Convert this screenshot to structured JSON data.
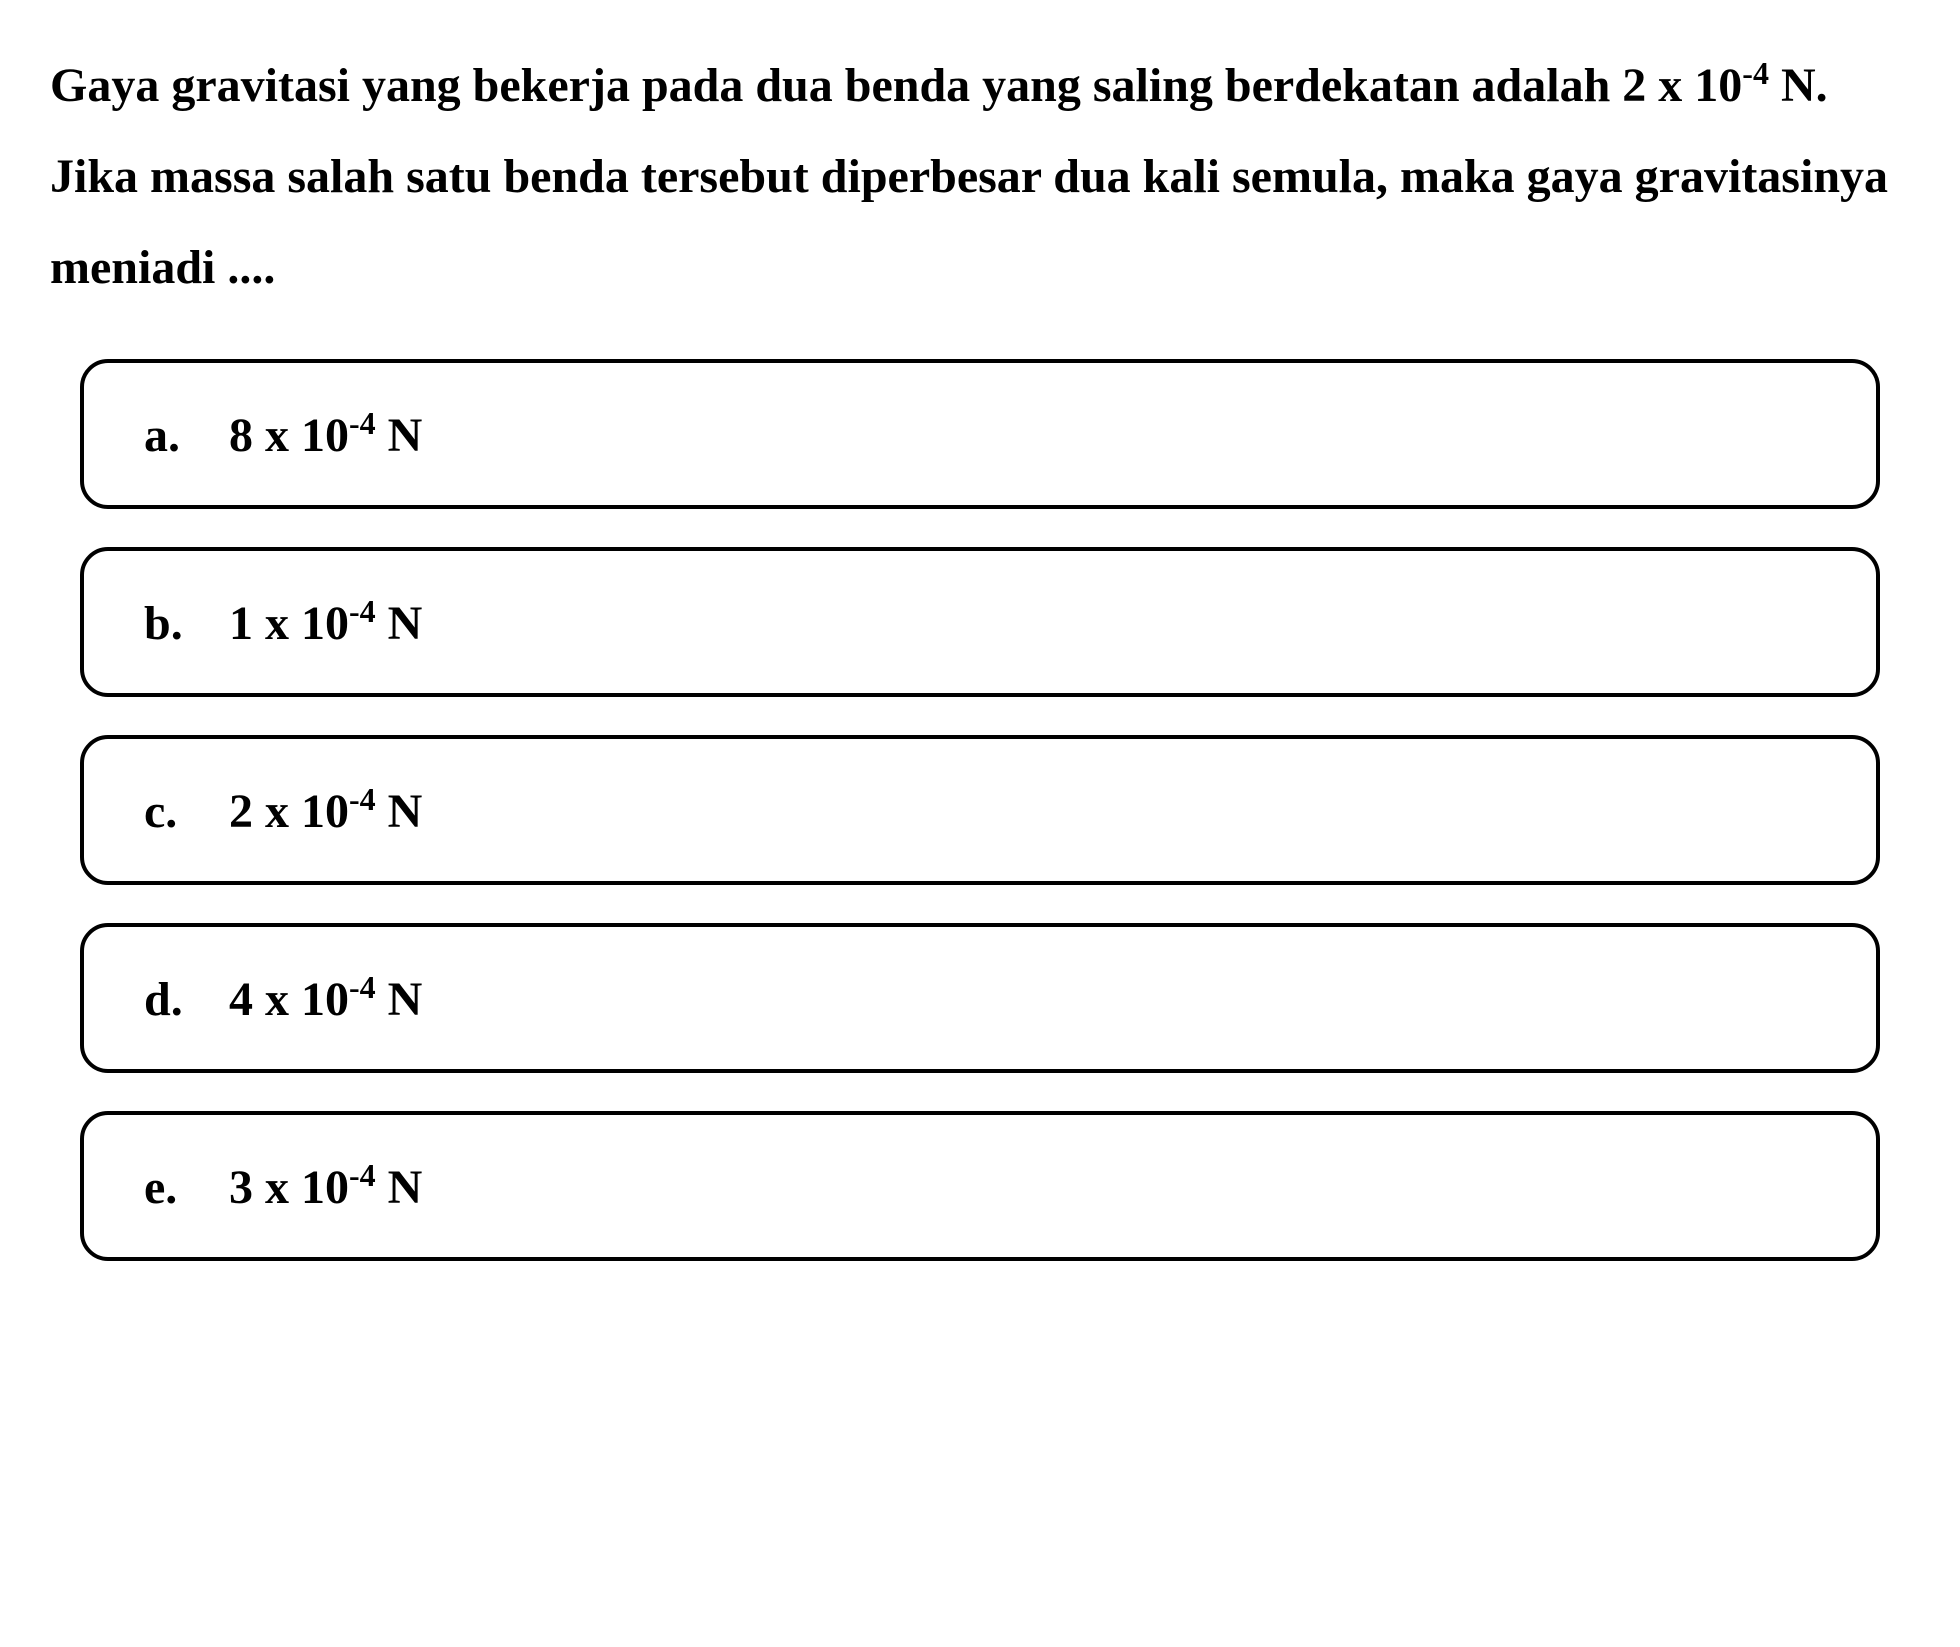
{
  "question": {
    "text_html": "Gaya gravitasi yang bekerja pada dua benda yang saling berdekatan adalah 2 x 10<sup>-4</sup> N. Jika massa salah satu benda tersebut diperbesar dua kali semula, maka gaya gravitasinya meniadi ...."
  },
  "options": [
    {
      "letter": "a.",
      "value_html": "8 x 10<sup>-4</sup> N"
    },
    {
      "letter": "b.",
      "value_html": "1 x 10<sup>-4</sup> N"
    },
    {
      "letter": "c.",
      "value_html": "2 x 10<sup>-4</sup> N"
    },
    {
      "letter": "d.",
      "value_html": "4 x 10<sup>-4</sup> N"
    },
    {
      "letter": "e.",
      "value_html": "3 x 10<sup>-4</sup> N"
    }
  ],
  "styling": {
    "background_color": "#ffffff",
    "text_color": "#000000",
    "border_color": "#000000",
    "border_width": 4,
    "border_radius": 28,
    "question_fontsize": 48,
    "option_fontsize": 48,
    "superscript_fontsize": 32,
    "font_weight": "bold",
    "font_family": "Georgia, 'Times New Roman', serif",
    "line_height": 1.9,
    "option_gap": 38,
    "option_padding_vertical": 42,
    "option_padding_horizontal": 60
  }
}
